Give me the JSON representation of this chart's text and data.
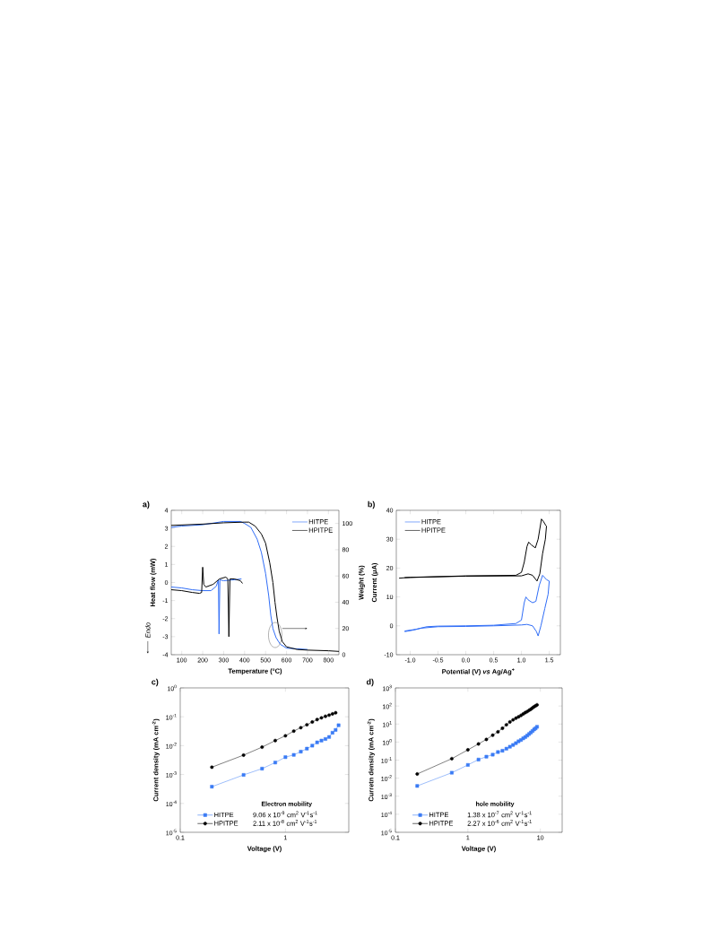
{
  "chart_data": [
    {
      "type": "line",
      "title": "a)",
      "xlabel": "Temperature (°C)",
      "ylabel": "Heat flow (mW)",
      "y2label": "Weight (%)",
      "annotations": [
        "Endo"
      ],
      "xlim": [
        50,
        850
      ],
      "xticks": [
        100,
        200,
        300,
        400,
        500,
        600,
        700,
        800
      ],
      "ylim": [
        -4,
        4
      ],
      "yticks": [
        -4,
        -3,
        -2,
        -1,
        0,
        1,
        2,
        3,
        4
      ],
      "y2lim": [
        0,
        110
      ],
      "y2ticks": [
        0,
        20,
        40,
        60,
        80,
        100
      ],
      "legend": "top right",
      "series": [
        {
          "name": "HITPE",
          "color": "#2f6cf6",
          "axis": "y2",
          "x": [
            50,
            100,
            200,
            300,
            380,
            400,
            430,
            460,
            480,
            500,
            515,
            525,
            535,
            550,
            570,
            600,
            650,
            700
          ],
          "values": [
            97,
            98,
            99,
            101.5,
            101.5,
            100,
            97,
            88,
            78,
            62,
            45,
            30,
            20,
            13,
            8,
            5,
            4.5,
            4
          ]
        },
        {
          "name": "HPITPE",
          "color": "#000000",
          "axis": "y2",
          "x": [
            50,
            200,
            300,
            400,
            420,
            450,
            480,
            500,
            520,
            535,
            545,
            555,
            565,
            580,
            600,
            650,
            700,
            800,
            850
          ],
          "values": [
            98.5,
            99.5,
            100.5,
            101,
            101,
            98,
            92,
            85,
            70,
            55,
            40,
            28,
            18,
            10,
            6,
            4,
            3.5,
            3,
            2.5
          ]
        },
        {
          "color": "#2f6cf6",
          "x": [
            50,
            100,
            150,
            200,
            240,
            265,
            275,
            278,
            282,
            300,
            350,
            385
          ],
          "values": [
            -0.25,
            -0.3,
            -0.4,
            -0.45,
            -0.45,
            -0.2,
            0.15,
            -2.85,
            0.15,
            0.1,
            0.15,
            0.2
          ]
        },
        {
          "color": "#000000",
          "x": [
            50,
            100,
            150,
            185,
            195,
            200,
            205,
            215,
            250,
            280,
            310,
            320,
            325,
            330,
            350,
            380,
            390
          ],
          "values": [
            -0.4,
            -0.45,
            -0.55,
            -0.6,
            -0.55,
            0.85,
            -0.1,
            -0.25,
            -0.1,
            0.2,
            0.3,
            0.2,
            -3.0,
            0.2,
            0.2,
            0.1,
            -0.05
          ]
        }
      ]
    },
    {
      "type": "line",
      "title": "b)",
      "xlabel": "Potential (V) *vs* Ag/Ag$^{+}$",
      "ylabel": "Current (μA)",
      "xlim": [
        -1.25,
        1.7
      ],
      "xticks": [
        {
          "value": -1,
          "label": "-1.0"
        },
        -0.5,
        {
          "value": 0,
          "label": "0.0"
        },
        0.5,
        {
          "value": 1,
          "label": "1.0"
        },
        1.5
      ],
      "ylim": [
        -10,
        40
      ],
      "yticks": [
        -10,
        0,
        10,
        20,
        30,
        40
      ],
      "legend": "top left",
      "series": [
        {
          "name": "HITPE",
          "color": "#2f6cf6",
          "x": [
            -1.1,
            -0.9,
            -0.7,
            -0.5,
            0,
            0.5,
            0.9,
            1.0,
            1.05,
            1.08,
            1.12,
            1.2,
            1.26,
            1.32,
            1.38,
            1.45,
            1.5,
            1.48,
            1.42,
            1.35,
            1.3,
            1.27,
            1.2,
            1.1,
            1.0,
            0.5,
            0,
            -0.5,
            -0.8,
            -0.95,
            -1.1
          ],
          "values": [
            -1.8,
            -1.2,
            -0.3,
            -0.1,
            0,
            0.2,
            0.8,
            2,
            8,
            10,
            9,
            8,
            8.5,
            14,
            17.5,
            16,
            15.5,
            11,
            6,
            0,
            -3.5,
            -2,
            0,
            0.5,
            0.3,
            0,
            -0.2,
            -0.3,
            -0.8,
            -1.5,
            -2
          ]
        },
        {
          "name": "HPITPE",
          "color": "#000000",
          "x": [
            -1.2,
            -1,
            0,
            0.9,
            1.0,
            1.05,
            1.1,
            1.13,
            1.18,
            1.25,
            1.3,
            1.36,
            1.4,
            1.43,
            1.45,
            1.43,
            1.38,
            1.33,
            1.28,
            1.2,
            1.12,
            1.0,
            0,
            -1.1
          ],
          "values": [
            16.5,
            16.8,
            17.3,
            17.5,
            18.5,
            22,
            27.5,
            29,
            28,
            27,
            30,
            37,
            36,
            35,
            34.5,
            30,
            25,
            18,
            15.5,
            17.5,
            18,
            17.3,
            17.2,
            16.7
          ]
        }
      ]
    },
    {
      "type": "line",
      "title": "c)",
      "xlabel": "Voltage (V)",
      "ylabel": "Current density (mA cm$^{-2}$)",
      "log": "xy",
      "xlim": [
        0.1,
        4
      ],
      "xticks": [
        0.1,
        1
      ],
      "ylim": [
        1e-05,
        1
      ],
      "yticks": [
        {
          "value": 1e-05,
          "label": "10$^{-5}$"
        },
        {
          "value": 0.0001,
          "label": "10$^{-4}$"
        },
        {
          "value": 0.001,
          "label": "10$^{-3}$"
        },
        {
          "value": 0.01,
          "label": "10$^{-2}$"
        },
        {
          "value": 0.1,
          "label": "10$^{-1}$"
        },
        {
          "value": 1,
          "label": "10$^{0}$"
        }
      ],
      "legend": "bottom",
      "annotations": [
        "Electron mobility",
        "9.06 x 10$^{-9}$ cm$^{2}$ V$^{-1}$s$^{-1}$",
        "2.11 x 10$^{-8}$ cm$^{2}$ V$^{-1}$s$^{-1}$"
      ],
      "series": [
        {
          "name": "HITPE",
          "color": "#3a7bf5",
          "marker": "square",
          "x": [
            0.2,
            0.4,
            0.6,
            0.8,
            1.0,
            1.2,
            1.4,
            1.6,
            1.8,
            2.0,
            2.2,
            2.4,
            2.6,
            2.8,
            3.0,
            3.2
          ],
          "values": [
            0.00038,
            0.00097,
            0.0016,
            0.0026,
            0.004,
            0.0048,
            0.0062,
            0.0079,
            0.01,
            0.013,
            0.015,
            0.017,
            0.02,
            0.028,
            0.035,
            0.051
          ]
        },
        {
          "name": "HPITPE",
          "color": "#000000",
          "marker": "circle",
          "x": [
            0.2,
            0.4,
            0.6,
            0.8,
            1.0,
            1.2,
            1.4,
            1.6,
            1.8,
            2.0,
            2.2,
            2.4,
            2.6,
            2.8,
            3.0
          ],
          "values": [
            0.0018,
            0.0047,
            0.0089,
            0.015,
            0.022,
            0.032,
            0.042,
            0.053,
            0.066,
            0.08,
            0.092,
            0.104,
            0.114,
            0.126,
            0.138
          ]
        }
      ]
    },
    {
      "type": "line",
      "title": "d)",
      "xlabel": "Voltage (V)",
      "ylabel": "Curretn density (mA cm$^{-2}$)",
      "log": "xy",
      "xlim": [
        0.1,
        20
      ],
      "xticks": [
        0.1,
        1,
        10
      ],
      "ylim": [
        1e-05,
        1000
      ],
      "yticks": [
        {
          "value": 1e-05,
          "label": "10$^{-5}$"
        },
        {
          "value": 0.0001,
          "label": "10$^{-4}$"
        },
        {
          "value": 0.001,
          "label": "10$^{-3}$"
        },
        {
          "value": 0.01,
          "label": "10$^{-2}$"
        },
        {
          "value": 0.1,
          "label": "10$^{-1}$"
        },
        {
          "value": 1,
          "label": "10$^{0}$"
        },
        {
          "value": 10,
          "label": "10$^{1}$"
        },
        {
          "value": 100,
          "label": "10$^{2}$"
        },
        {
          "value": 1000,
          "label": "10$^{3}$"
        }
      ],
      "legend": "bottom",
      "annotations": [
        "hole mobility",
        "1.38 x 10$^{-7}$ cm$^{2}$ V$^{-1}$s$^{-1}$",
        "2.27 x 10$^{-6}$ cm$^{2}$ V$^{-1}$s$^{-1}$"
      ],
      "series": [
        {
          "name": "HITPE",
          "color": "#3a7bf5",
          "marker": "square",
          "x": [
            0.2,
            0.6,
            1.0,
            1.4,
            1.8,
            2.2,
            2.6,
            3.0,
            3.4,
            3.8,
            4.2,
            4.6,
            5.0,
            5.4,
            5.8,
            6.2,
            6.6,
            7.0,
            7.4,
            7.8,
            8.2,
            8.6,
            9.0
          ],
          "values": [
            0.0037,
            0.02,
            0.054,
            0.107,
            0.155,
            0.2,
            0.28,
            0.33,
            0.43,
            0.55,
            0.69,
            0.87,
            1.1,
            1.3,
            1.6,
            1.9,
            2.3,
            2.8,
            3.4,
            4.1,
            5.0,
            5.8,
            7.0
          ]
        },
        {
          "name": "HPITPE",
          "color": "#000000",
          "marker": "circle",
          "x": [
            0.2,
            0.6,
            1.0,
            1.4,
            1.8,
            2.2,
            2.6,
            3.0,
            3.4,
            3.8,
            4.2,
            4.6,
            5.0,
            5.4,
            5.8,
            6.2,
            6.6,
            7.0,
            7.4,
            7.8,
            8.2,
            8.6,
            9.0
          ],
          "values": [
            0.017,
            0.12,
            0.37,
            0.79,
            1.4,
            2.4,
            3.7,
            5.8,
            9.1,
            13,
            17,
            21,
            25,
            30,
            36,
            43,
            49,
            58,
            66,
            78,
            91,
            102,
            115
          ]
        }
      ]
    }
  ]
}
